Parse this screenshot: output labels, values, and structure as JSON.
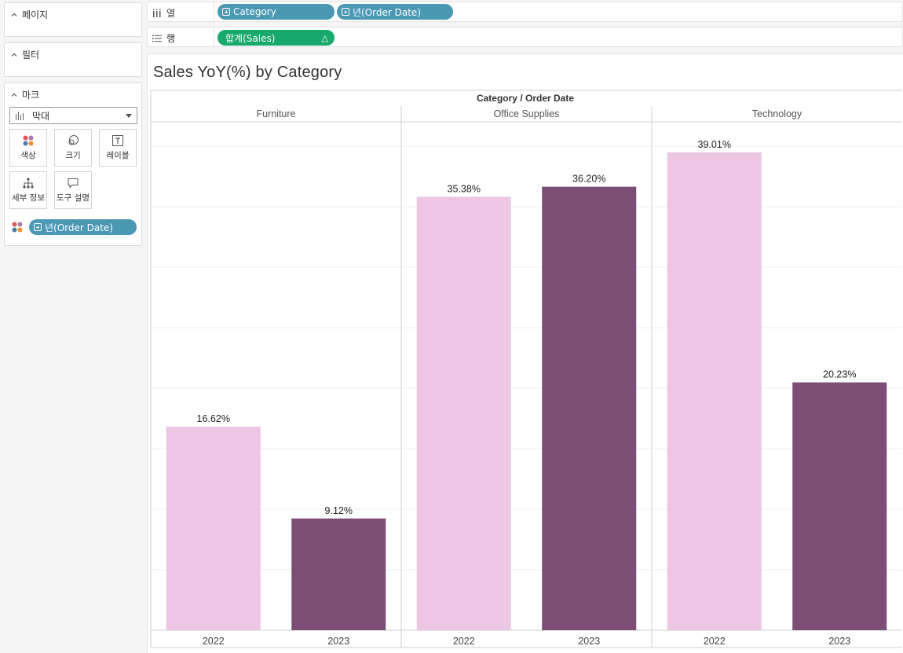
{
  "left_panel": {
    "pages_title": "페이지",
    "filters_title": "필터",
    "marks_title": "마크",
    "mark_type": "막대",
    "mark_buttons": {
      "color": "색상",
      "size": "크기",
      "label": "레이블",
      "detail": "세부 정보",
      "tooltip": "도구 설명"
    },
    "color_field": "년(Order Date)"
  },
  "shelves": {
    "columns_label": "열",
    "rows_label": "행",
    "columns_pills": [
      "Category",
      "년(Order Date)"
    ],
    "rows_pill": "합계(Sales)",
    "rows_pill_delta": "△"
  },
  "colors": {
    "pill_blue": "#4b98b4",
    "pill_green": "#17a86b",
    "year_2022": "#ecc6e2",
    "year_2023": "#7b4d77"
  },
  "chart_data": {
    "type": "bar",
    "title": "Sales YoY(%) by Category",
    "header_title": "Category / Order Date",
    "categories": [
      "Furniture",
      "Office Supplies",
      "Technology"
    ],
    "x": [
      "2022",
      "2023"
    ],
    "series": [
      {
        "name": "2022",
        "values": [
          16.62,
          35.38,
          39.01
        ],
        "labels": [
          "16.62%",
          "35.38%",
          "39.01%"
        ]
      },
      {
        "name": "2023",
        "values": [
          9.12,
          36.2,
          20.23
        ],
        "labels": [
          "9.12%",
          "36.20%",
          "20.23%"
        ]
      }
    ],
    "ylim": [
      0,
      41.5
    ],
    "grid": true,
    "legend": "none"
  }
}
